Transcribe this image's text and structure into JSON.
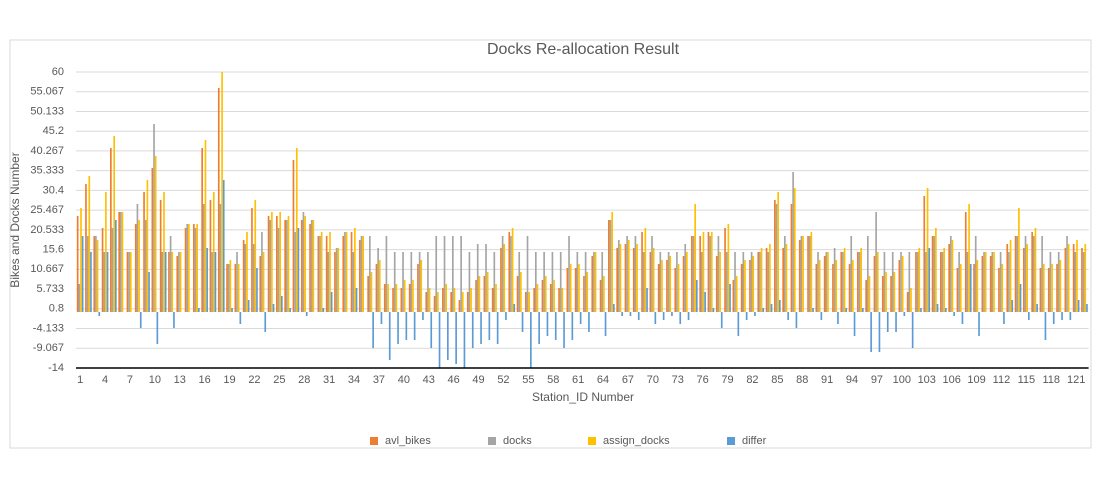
{
  "chart_data": {
    "type": "bar",
    "title": "Docks Re-allocation Result",
    "x_label": "Station_ID Number",
    "y_label": "Bikes and Docks Number",
    "categories": [
      "1",
      null,
      null,
      "4",
      null,
      null,
      "7",
      null,
      null,
      "10",
      null,
      null,
      "13",
      null,
      null,
      "16",
      null,
      null,
      "19",
      null,
      null,
      "22",
      null,
      null,
      "25",
      null,
      null,
      "28",
      null,
      null,
      "31",
      null,
      null,
      "34",
      null,
      null,
      "37",
      null,
      null,
      "40",
      null,
      null,
      "43",
      null,
      null,
      "46",
      null,
      null,
      "49",
      null,
      null,
      "52",
      null,
      null,
      "55",
      null,
      null,
      "58",
      null,
      null,
      "61",
      null,
      null,
      "64",
      null,
      null,
      "67",
      null,
      null,
      "70",
      null,
      null,
      "73",
      null,
      null,
      "76",
      null,
      null,
      "79",
      null,
      null,
      "82",
      null,
      null,
      "85",
      null,
      null,
      "88",
      null,
      null,
      "91",
      null,
      null,
      "94",
      null,
      null,
      "97",
      null,
      null,
      "100",
      null,
      null,
      "103",
      null,
      null,
      "106",
      null,
      null,
      "109",
      null,
      null,
      "112",
      null,
      null,
      "115",
      null,
      null,
      "118",
      null,
      null,
      "121",
      null
    ],
    "series": [
      {
        "name": "avl_bikes",
        "color": "#ed7d31",
        "values": [
          24,
          32,
          19,
          21,
          41,
          25,
          15,
          22,
          30,
          36,
          28,
          15,
          14,
          21,
          22,
          41,
          28,
          56,
          12,
          12,
          18,
          26,
          14,
          24,
          24,
          23,
          38,
          23,
          22,
          19,
          19,
          15,
          19,
          20,
          18,
          9,
          12,
          7,
          6,
          6,
          7,
          12,
          5,
          4,
          6,
          5,
          3,
          5,
          8,
          9,
          6,
          16,
          20,
          9,
          5,
          6,
          8,
          7,
          6,
          11,
          11,
          9,
          14,
          8,
          23,
          16,
          17,
          16,
          20,
          15,
          12,
          13,
          11,
          14,
          19,
          19,
          20,
          14,
          21,
          8,
          12,
          13,
          15,
          16,
          28,
          16,
          27,
          18,
          19,
          12,
          14,
          12,
          15,
          12,
          15,
          8,
          14,
          9,
          9,
          13,
          5,
          15,
          29,
          19,
          15,
          17,
          11,
          25,
          12,
          14,
          14,
          11,
          17,
          19,
          16,
          20,
          11,
          11,
          12,
          16,
          17,
          16
        ]
      },
      {
        "name": "docks",
        "color": "#a5a5a5",
        "values": [
          7,
          19,
          19,
          15,
          21,
          25,
          15,
          27,
          23,
          47,
          15,
          19,
          15,
          22,
          21,
          27,
          15,
          27,
          12,
          15,
          17,
          17,
          20,
          23,
          21,
          23,
          20,
          25,
          23,
          19,
          15,
          16,
          20,
          15,
          19,
          19,
          16,
          19,
          15,
          15,
          15,
          15,
          15,
          19,
          19,
          19,
          19,
          15,
          17,
          17,
          15,
          19,
          19,
          15,
          19,
          15,
          15,
          15,
          15,
          19,
          15,
          15,
          15,
          15,
          23,
          18,
          19,
          19,
          15,
          19,
          15,
          15,
          15,
          17,
          19,
          15,
          19,
          19,
          15,
          15,
          15,
          15,
          15,
          15,
          27,
          19,
          35,
          19,
          19,
          15,
          15,
          16,
          15,
          19,
          15,
          19,
          25,
          15,
          15,
          15,
          15,
          15,
          15,
          19,
          15,
          19,
          15,
          15,
          19,
          15,
          15,
          15,
          15,
          19,
          19,
          19,
          19,
          15,
          15,
          19,
          15,
          15
        ]
      },
      {
        "name": "assign_docks",
        "color": "#ffc000",
        "values": [
          26,
          34,
          18,
          30,
          44,
          25,
          15,
          23,
          33,
          39,
          30,
          15,
          15,
          22,
          22,
          43,
          30,
          60,
          13,
          12,
          20,
          28,
          15,
          25,
          25,
          24,
          41,
          24,
          23,
          20,
          20,
          16,
          20,
          21,
          19,
          10,
          13,
          7,
          7,
          8,
          8,
          13,
          6,
          5,
          7,
          6,
          5,
          6,
          9,
          10,
          7,
          17,
          21,
          10,
          5,
          7,
          9,
          8,
          6,
          12,
          12,
          10,
          15,
          9,
          25,
          17,
          18,
          17,
          21,
          16,
          13,
          14,
          12,
          15,
          27,
          20,
          20,
          15,
          22,
          9,
          13,
          14,
          16,
          17,
          30,
          17,
          31,
          19,
          20,
          13,
          15,
          13,
          16,
          13,
          16,
          9,
          15,
          10,
          10,
          14,
          6,
          16,
          31,
          21,
          16,
          18,
          12,
          27,
          13,
          15,
          15,
          12,
          18,
          26,
          17,
          21,
          12,
          12,
          13,
          17,
          18,
          17
        ]
      },
      {
        "name": "differ",
        "color": "#5b9bd5",
        "values": [
          19,
          15,
          -1,
          15,
          23,
          0,
          0,
          -4,
          10,
          -8,
          15,
          -4,
          0,
          0,
          1,
          16,
          15,
          33,
          1,
          -3,
          3,
          11,
          -5,
          2,
          4,
          1,
          21,
          -1,
          0,
          1,
          5,
          0,
          0,
          6,
          0,
          -9,
          -3,
          -12,
          -8,
          -7,
          -7,
          -2,
          -9,
          -14,
          -12,
          -13,
          -14,
          -9,
          -8,
          -7,
          -8,
          -2,
          2,
          -5,
          -14,
          -8,
          -6,
          -7,
          -9,
          -7,
          -3,
          -5,
          0,
          -6,
          2,
          -1,
          -1,
          -2,
          6,
          -3,
          -2,
          -1,
          -3,
          -2,
          8,
          5,
          1,
          -4,
          7,
          -6,
          -2,
          -1,
          1,
          2,
          3,
          -2,
          -4,
          0,
          1,
          -2,
          0,
          -3,
          1,
          -6,
          1,
          -10,
          -10,
          -5,
          -5,
          -1,
          -9,
          1,
          16,
          2,
          1,
          -1,
          -3,
          12,
          -6,
          0,
          0,
          -3,
          3,
          7,
          -2,
          2,
          -7,
          -3,
          -2,
          -2,
          3,
          2
        ]
      }
    ],
    "ylim": [
      -14,
      60
    ],
    "yticks": [
      -14,
      -9.067,
      -4.133,
      0.8,
      5.733,
      10.667,
      15.6,
      20.533,
      25.467,
      30.4,
      35.333,
      40.267,
      45.2,
      50.133,
      55.067,
      60
    ],
    "grid": true,
    "legend": "bottom"
  }
}
